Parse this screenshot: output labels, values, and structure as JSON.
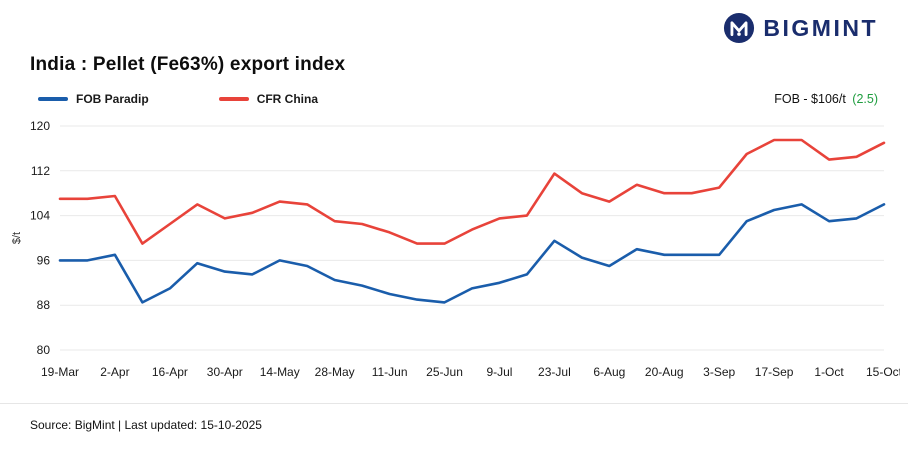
{
  "logo": {
    "wordmark": "BIGMINT",
    "icon": "bigmint-m-icon",
    "color": "#1a2d6d"
  },
  "title": "India : Pellet (Fe63%) export index",
  "legend": [
    {
      "label": "FOB Paradip",
      "color": "#1a5dab"
    },
    {
      "label": "CFR China",
      "color": "#e8433a"
    }
  ],
  "price_note": {
    "prefix": "FOB - $106/t",
    "change": "(2.5)",
    "change_color": "#1f9d3f"
  },
  "footer": {
    "source": "Source: BigMint | Last updated: 15-10-2025"
  },
  "chart_data": {
    "type": "line",
    "title": "India : Pellet (Fe63%) export index",
    "xlabel": "",
    "ylabel": "$/t",
    "ylim": [
      80,
      120
    ],
    "yticks": [
      80,
      88,
      96,
      104,
      112,
      120
    ],
    "grid": true,
    "legend_position": "top-left",
    "x": [
      "19-Mar",
      "26-Mar",
      "2-Apr",
      "9-Apr",
      "16-Apr",
      "23-Apr",
      "30-Apr",
      "7-May",
      "14-May",
      "21-May",
      "28-May",
      "4-Jun",
      "11-Jun",
      "18-Jun",
      "25-Jun",
      "2-Jul",
      "9-Jul",
      "16-Jul",
      "23-Jul",
      "30-Jul",
      "6-Aug",
      "13-Aug",
      "20-Aug",
      "27-Aug",
      "3-Sep",
      "10-Sep",
      "17-Sep",
      "24-Sep",
      "1-Oct",
      "8-Oct",
      "15-Oct"
    ],
    "x_tick_labels": [
      "19-Mar",
      "2-Apr",
      "16-Apr",
      "30-Apr",
      "14-May",
      "28-May",
      "11-Jun",
      "25-Jun",
      "9-Jul",
      "23-Jul",
      "6-Aug",
      "20-Aug",
      "3-Sep",
      "17-Sep",
      "1-Oct",
      "15-Oct"
    ],
    "x_tick_every": 2,
    "series": [
      {
        "name": "FOB Paradip",
        "color": "#1a5dab",
        "values": [
          96,
          96,
          97,
          88.5,
          91,
          95.5,
          94,
          93.5,
          96,
          95,
          92.5,
          91.5,
          90,
          89,
          88.5,
          91,
          92,
          93.5,
          99.5,
          96.5,
          95,
          98,
          97,
          97,
          97,
          103,
          105,
          106,
          103,
          103.5,
          106
        ]
      },
      {
        "name": "CFR China",
        "color": "#e8433a",
        "values": [
          107,
          107,
          107.5,
          99,
          102.5,
          106,
          103.5,
          104.5,
          106.5,
          106,
          103,
          102.5,
          101,
          99,
          99,
          101.5,
          103.5,
          104,
          111.5,
          108,
          106.5,
          109.5,
          108,
          108,
          109,
          115,
          117.5,
          117.5,
          114,
          114.5,
          117
        ]
      }
    ]
  }
}
